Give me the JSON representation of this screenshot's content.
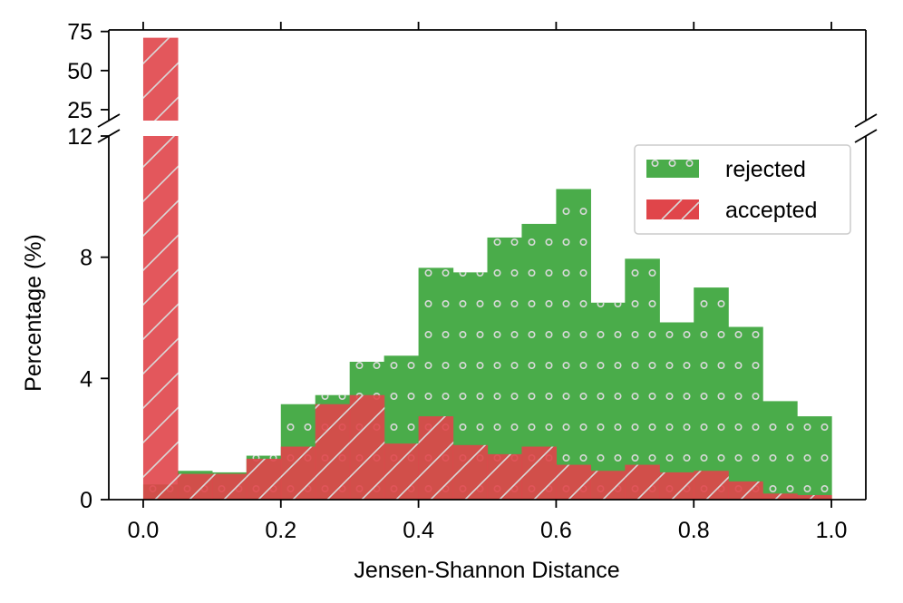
{
  "chart_data": {
    "type": "bar",
    "title": "",
    "xlabel": "Jensen-Shannon Distance",
    "ylabel": "Percentage (%)",
    "xlim": [
      -0.05,
      1.05
    ],
    "xticks": [
      "0.0",
      "0.2",
      "0.4",
      "0.6",
      "0.8",
      "1.0"
    ],
    "xtick_values": [
      0.0,
      0.2,
      0.4,
      0.6,
      0.8,
      1.0
    ],
    "broken_axis": {
      "upper": {
        "ylim": [
          18,
          76
        ],
        "yticks": [
          "25",
          "50",
          "75"
        ],
        "ytick_values": [
          25,
          50,
          75
        ]
      },
      "lower": {
        "ylim": [
          0,
          12
        ],
        "yticks": [
          "0",
          "4",
          "8",
          "12"
        ],
        "ytick_values": [
          0,
          4,
          8,
          12
        ]
      }
    },
    "bin_width": 0.05,
    "bin_starts": [
      0.0,
      0.05,
      0.1,
      0.15,
      0.2,
      0.25,
      0.3,
      0.35,
      0.4,
      0.45,
      0.5,
      0.55,
      0.6,
      0.65,
      0.7,
      0.75,
      0.8,
      0.85,
      0.9,
      0.95
    ],
    "legend": {
      "location": "upper-right",
      "entries": [
        "rejected",
        "accepted"
      ]
    },
    "series": [
      {
        "name": "rejected",
        "color": "#4aac4a",
        "hatch": "dots",
        "values": [
          0.5,
          0.95,
          0.9,
          1.45,
          3.15,
          3.45,
          4.55,
          4.75,
          7.65,
          7.5,
          8.65,
          9.1,
          10.25,
          6.5,
          7.95,
          5.85,
          7.0,
          5.7,
          3.25,
          2.75
        ]
      },
      {
        "name": "accepted",
        "color": "#e0454a",
        "hatch": "diagonal",
        "values": [
          71.0,
          0.85,
          0.85,
          1.35,
          1.75,
          3.15,
          3.45,
          1.85,
          2.75,
          1.8,
          1.5,
          1.75,
          1.15,
          0.95,
          1.15,
          0.9,
          0.95,
          0.6,
          0.2,
          0.15
        ]
      }
    ]
  }
}
